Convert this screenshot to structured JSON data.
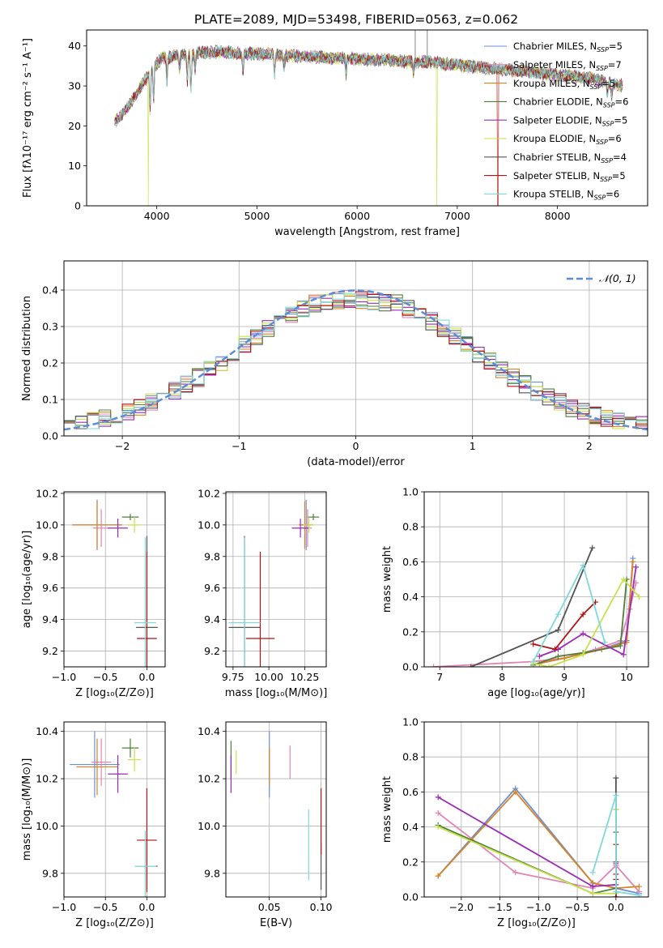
{
  "title": "PLATE=2089, MJD=53498, FIBERID=0563, z=0.062",
  "colors": {
    "Chabrier MILES": "#6b8fd6",
    "Salpeter MILES": "#e284b4",
    "Kroupa MILES": "#d98324",
    "Chabrier ELODIE": "#4f7f3a",
    "Salpeter ELODIE": "#9a2bb5",
    "Kroupa ELODIE": "#c6e24a",
    "Chabrier STELIB": "#545454",
    "Salpeter STELIB": "#b01414",
    "Kroupa STELIB": "#7fd8dc",
    "normal": "#5b8dd6",
    "grid": "#b0b0b0"
  },
  "models": [
    {
      "name": "Chabrier MILES",
      "label": "Chabrier MILES, N",
      "ssp": "=5"
    },
    {
      "name": "Salpeter MILES",
      "label": "Salpeter MILES, N",
      "ssp": "=7"
    },
    {
      "name": "Kroupa MILES",
      "label": "Kroupa MILES, N",
      "ssp": "=5"
    },
    {
      "name": "Chabrier ELODIE",
      "label": "Chabrier ELODIE, N",
      "ssp": "=6"
    },
    {
      "name": "Salpeter ELODIE",
      "label": "Salpeter ELODIE, N",
      "ssp": "=5"
    },
    {
      "name": "Kroupa ELODIE",
      "label": "Kroupa ELODIE, N",
      "ssp": "=6"
    },
    {
      "name": "Chabrier STELIB",
      "label": "Chabrier STELIB, N",
      "ssp": "=4"
    },
    {
      "name": "Salpeter STELIB",
      "label": "Salpeter STELIB, N",
      "ssp": "=5"
    },
    {
      "name": "Kroupa STELIB",
      "label": "Kroupa STELIB, N",
      "ssp": "=6"
    }
  ],
  "chart_data": [
    {
      "id": "spectrum",
      "type": "line",
      "xlabel": "wavelength [Angstrom, rest frame]",
      "ylabel": "Flux [fλ10⁻¹⁷ erg cm⁻² s⁻¹ A⁻¹]",
      "xlim": [
        3300,
        8900
      ],
      "ylim": [
        0,
        44
      ],
      "xticks": [
        4000,
        5000,
        6000,
        7000,
        8000
      ],
      "yticks": [
        0,
        10,
        20,
        30,
        40
      ],
      "grid": false,
      "legend": "top-right",
      "continuum": {
        "x": [
          3580,
          3650,
          3720,
          3800,
          3870,
          3950,
          4050,
          4200,
          4350,
          4500,
          4700,
          4900,
          5100,
          5300,
          5500,
          5700,
          5900,
          6100,
          6300,
          6500,
          6700,
          6900,
          7100,
          7300,
          7500,
          7700,
          7900,
          8100,
          8300,
          8500,
          8650
        ],
        "y": [
          21,
          23,
          25,
          28,
          31,
          34,
          37,
          37.5,
          38,
          38.5,
          38.5,
          38,
          38,
          37.5,
          37.5,
          37,
          37,
          36.5,
          36.5,
          36,
          36,
          35.5,
          35,
          34.5,
          34,
          33.5,
          33,
          32.5,
          32,
          31,
          30
        ]
      },
      "absorption_lines": [
        {
          "x": 3934,
          "depth": 9
        },
        {
          "x": 3969,
          "depth": 8
        },
        {
          "x": 4102,
          "depth": 6
        },
        {
          "x": 4227,
          "depth": 4
        },
        {
          "x": 4304,
          "depth": 7
        },
        {
          "x": 4341,
          "depth": 9
        },
        {
          "x": 4383,
          "depth": 4
        },
        {
          "x": 4861,
          "depth": 5
        },
        {
          "x": 5175,
          "depth": 5
        },
        {
          "x": 5270,
          "depth": 3
        },
        {
          "x": 5890,
          "depth": 4
        },
        {
          "x": 6563,
          "depth": 3
        },
        {
          "x": 8498,
          "depth": 3
        },
        {
          "x": 8542,
          "depth": 3
        },
        {
          "x": 8662,
          "depth": 3
        }
      ],
      "drops": [
        {
          "x": 3918,
          "y": 0,
          "series": "Kroupa ELODIE"
        },
        {
          "x": 6795,
          "y": 0,
          "series": "Kroupa ELODIE"
        },
        {
          "x": 7405,
          "y": 0,
          "series": "Salpeter STELIB"
        }
      ],
      "spikes": [
        {
          "x": 6580,
          "y": 44
        },
        {
          "x": 6700,
          "y": 44
        }
      ]
    },
    {
      "id": "residuals",
      "type": "histogram",
      "xlabel": "(data-model)/error",
      "ylabel": "Normed distribution",
      "xlim": [
        -2.5,
        2.5
      ],
      "ylim": [
        0,
        0.48
      ],
      "xticks": [
        -2,
        -1,
        0,
        1,
        2
      ],
      "yticks": [
        0.0,
        0.1,
        0.2,
        0.3,
        0.4
      ],
      "grid": true,
      "legend": "top-right",
      "normal_label": "𝒩(0, 1)",
      "bins_start": -2.5,
      "bin_width": 0.1
    },
    {
      "id": "age_vs_Z",
      "type": "errorbar",
      "xlabel": "Z [log₁₀(Z/Z⊙)]",
      "ylabel": "age  [log₁₀(age/yr)]",
      "xlim": [
        -1.0,
        0.22
      ],
      "ylim": [
        9.1,
        10.21
      ],
      "xticks": [
        -1.0,
        -0.5,
        0.0
      ],
      "yticks": [
        9.2,
        9.4,
        9.6,
        9.8,
        10.0,
        10.2
      ],
      "grid": true,
      "points": [
        {
          "series": "Chabrier MILES",
          "x": -0.6,
          "y": 10.0,
          "xerr": 0.3,
          "yerr": 0.16
        },
        {
          "series": "Salpeter MILES",
          "x": -0.55,
          "y": 9.98,
          "xerr": 0.1,
          "yerr": 0.12
        },
        {
          "series": "Kroupa MILES",
          "x": -0.6,
          "y": 10.0,
          "xerr": 0.3,
          "yerr": 0.15
        },
        {
          "series": "Chabrier ELODIE",
          "x": -0.2,
          "y": 10.05,
          "xerr": 0.1,
          "yerr": 0.02
        },
        {
          "series": "Salpeter ELODIE",
          "x": -0.35,
          "y": 9.98,
          "xerr": 0.12,
          "yerr": 0.06
        },
        {
          "series": "Kroupa ELODIE",
          "x": -0.15,
          "y": 10.0,
          "xerr": 0.08,
          "yerr": 0.05
        },
        {
          "series": "Chabrier STELIB",
          "x": 0.0,
          "y": 9.35,
          "xerr": 0.13,
          "yerr": 0.58
        },
        {
          "series": "Salpeter STELIB",
          "x": 0.0,
          "y": 9.28,
          "xerr": 0.12,
          "yerr": 0.55
        },
        {
          "series": "Kroupa STELIB",
          "x": -0.02,
          "y": 9.38,
          "xerr": 0.13,
          "yerr": 0.54
        }
      ]
    },
    {
      "id": "age_vs_mass",
      "type": "errorbar",
      "xlabel": "mass [log₁₀(M/M⊙)]",
      "ylabel": "",
      "xlim": [
        9.7,
        10.4
      ],
      "ylim": [
        9.1,
        10.21
      ],
      "xticks": [
        9.75,
        10.0,
        10.25
      ],
      "yticks": [
        9.2,
        9.4,
        9.6,
        9.8,
        10.0,
        10.2
      ],
      "grid": true,
      "points": [
        {
          "series": "Chabrier MILES",
          "x": 10.26,
          "y": 10.0,
          "xerr": 0.05,
          "yerr": 0.16
        },
        {
          "series": "Salpeter MILES",
          "x": 10.27,
          "y": 9.98,
          "xerr": 0.03,
          "yerr": 0.12
        },
        {
          "series": "Kroupa MILES",
          "x": 10.25,
          "y": 10.0,
          "xerr": 0.04,
          "yerr": 0.15
        },
        {
          "series": "Chabrier ELODIE",
          "x": 10.31,
          "y": 10.05,
          "xerr": 0.04,
          "yerr": 0.02
        },
        {
          "series": "Salpeter ELODIE",
          "x": 10.22,
          "y": 9.98,
          "xerr": 0.06,
          "yerr": 0.06
        },
        {
          "series": "Kroupa ELODIE",
          "x": 10.28,
          "y": 10.0,
          "xerr": 0.04,
          "yerr": 0.05
        },
        {
          "series": "Chabrier STELIB",
          "x": 9.83,
          "y": 9.35,
          "xerr": 0.11,
          "yerr": 0.58
        },
        {
          "series": "Salpeter STELIB",
          "x": 9.94,
          "y": 9.28,
          "xerr": 0.1,
          "yerr": 0.55
        },
        {
          "series": "Kroupa STELIB",
          "x": 9.83,
          "y": 9.38,
          "xerr": 0.11,
          "yerr": 0.54
        }
      ]
    },
    {
      "id": "weight_vs_age",
      "type": "line",
      "xlabel": "age  [log₁₀(age/yr)]",
      "ylabel": "mass weight",
      "xlim": [
        6.75,
        10.35
      ],
      "ylim": [
        0.0,
        1.0
      ],
      "xticks": [
        7,
        8,
        9,
        10
      ],
      "yticks": [
        0.0,
        0.2,
        0.4,
        0.6,
        0.8,
        1.0
      ],
      "grid": true,
      "series": [
        {
          "name": "Chabrier MILES",
          "x": [
            8.6,
            9.0,
            9.6,
            10.0,
            10.1
          ],
          "y": [
            0.02,
            0.05,
            0.1,
            0.15,
            0.62
          ]
        },
        {
          "name": "Salpeter MILES",
          "x": [
            6.9,
            8.5,
            9.0,
            9.5,
            9.9,
            10.05,
            10.15
          ],
          "y": [
            0.0,
            0.03,
            0.05,
            0.1,
            0.15,
            0.33,
            0.48
          ]
        },
        {
          "name": "Kroupa MILES",
          "x": [
            8.6,
            9.0,
            9.6,
            10.0,
            10.1
          ],
          "y": [
            0.02,
            0.05,
            0.1,
            0.14,
            0.6
          ]
        },
        {
          "name": "Chabrier ELODIE",
          "x": [
            8.5,
            8.9,
            9.3,
            9.9,
            10.0
          ],
          "y": [
            0.01,
            0.06,
            0.08,
            0.12,
            0.5
          ]
        },
        {
          "name": "Salpeter ELODIE",
          "x": [
            8.6,
            8.9,
            9.3,
            9.95,
            10.15
          ],
          "y": [
            0.06,
            0.1,
            0.19,
            0.07,
            0.57
          ]
        },
        {
          "name": "Kroupa ELODIE",
          "x": [
            8.5,
            8.75,
            9.3,
            9.95,
            10.2
          ],
          "y": [
            0.02,
            0.0,
            0.07,
            0.5,
            0.4
          ]
        },
        {
          "name": "Chabrier STELIB",
          "x": [
            7.5,
            8.9,
            9.45
          ],
          "y": [
            0.0,
            0.21,
            0.68
          ]
        },
        {
          "name": "Salpeter STELIB",
          "x": [
            8.5,
            8.85,
            9.3,
            9.5
          ],
          "y": [
            0.13,
            0.1,
            0.3,
            0.37
          ]
        },
        {
          "name": "Kroupa STELIB",
          "x": [
            8.5,
            8.9,
            9.3,
            9.65
          ],
          "y": [
            0.03,
            0.3,
            0.58,
            0.14
          ]
        }
      ]
    },
    {
      "id": "mass_vs_Z",
      "type": "errorbar",
      "xlabel": "Z [log₁₀(Z/Z⊙)]",
      "ylabel": "mass [log₁₀(M/M⊙)]",
      "xlim": [
        -1.0,
        0.22
      ],
      "ylim": [
        9.7,
        10.44
      ],
      "xticks": [
        -1.0,
        -0.5,
        0.0
      ],
      "yticks": [
        9.8,
        10.0,
        10.2,
        10.4
      ],
      "grid": true,
      "points": [
        {
          "series": "Chabrier MILES",
          "x": -0.63,
          "y": 10.26,
          "xerr": 0.3,
          "yerr": 0.14
        },
        {
          "series": "Salpeter MILES",
          "x": -0.55,
          "y": 10.27,
          "xerr": 0.12,
          "yerr": 0.1
        },
        {
          "series": "Kroupa MILES",
          "x": -0.6,
          "y": 10.25,
          "xerr": 0.25,
          "yerr": 0.12
        },
        {
          "series": "Chabrier ELODIE",
          "x": -0.2,
          "y": 10.33,
          "xerr": 0.1,
          "yerr": 0.04
        },
        {
          "series": "Salpeter ELODIE",
          "x": -0.35,
          "y": 10.22,
          "xerr": 0.12,
          "yerr": 0.08
        },
        {
          "series": "Kroupa ELODIE",
          "x": -0.15,
          "y": 10.28,
          "xerr": 0.08,
          "yerr": 0.05
        },
        {
          "series": "Chabrier STELIB",
          "x": 0.0,
          "y": 9.83,
          "xerr": 0.13,
          "yerr": 0.1
        },
        {
          "series": "Salpeter STELIB",
          "x": 0.0,
          "y": 9.94,
          "xerr": 0.12,
          "yerr": 0.22
        },
        {
          "series": "Kroupa STELIB",
          "x": -0.02,
          "y": 9.83,
          "xerr": 0.13,
          "yerr": 0.15
        }
      ]
    },
    {
      "id": "mass_vs_ebv",
      "type": "errorbar",
      "xlabel": "E(B-V)",
      "ylabel": "",
      "xlim": [
        0.008,
        0.105
      ],
      "ylim": [
        9.7,
        10.44
      ],
      "xticks": [
        0.05,
        0.1
      ],
      "yticks": [
        9.8,
        10.0,
        10.2,
        10.4
      ],
      "grid": true,
      "points": [
        {
          "series": "Chabrier MILES",
          "x": 0.05,
          "y": 10.26,
          "xerr": 0.0,
          "yerr": 0.14
        },
        {
          "series": "Salpeter MILES",
          "x": 0.07,
          "y": 10.27,
          "xerr": 0.0,
          "yerr": 0.07
        },
        {
          "series": "Kroupa MILES",
          "x": 0.05,
          "y": 10.25,
          "xerr": 0.0,
          "yerr": 0.08
        },
        {
          "series": "Chabrier ELODIE",
          "x": 0.013,
          "y": 10.28,
          "xerr": 0.0,
          "yerr": 0.08
        },
        {
          "series": "Salpeter ELODIE",
          "x": 0.013,
          "y": 10.22,
          "xerr": 0.0,
          "yerr": 0.08
        },
        {
          "series": "Kroupa ELODIE",
          "x": 0.018,
          "y": 10.27,
          "xerr": 0.0,
          "yerr": 0.05
        },
        {
          "series": "Chabrier STELIB",
          "x": 0.1,
          "y": 9.83,
          "xerr": 0.0,
          "yerr": 0.1
        },
        {
          "series": "Salpeter STELIB",
          "x": 0.1,
          "y": 10.02,
          "xerr": 0.0,
          "yerr": 0.14
        },
        {
          "series": "Kroupa STELIB",
          "x": 0.088,
          "y": 9.92,
          "xerr": 0.0,
          "yerr": 0.15
        }
      ]
    },
    {
      "id": "weight_vs_Z",
      "type": "line",
      "xlabel": "Z [log₁₀(Z/Z⊙)]",
      "ylabel": "mass weight",
      "xlim": [
        -2.48,
        0.42
      ],
      "ylim": [
        0.0,
        1.0
      ],
      "xticks": [
        -2.0,
        -1.5,
        -1.0,
        -0.5,
        0.0
      ],
      "yticks": [
        0.0,
        0.2,
        0.4,
        0.6,
        0.8,
        1.0
      ],
      "grid": true,
      "series": [
        {
          "name": "Chabrier MILES",
          "x": [
            -2.3,
            -1.3,
            -0.3,
            0.0,
            0.3
          ],
          "y": [
            0.12,
            0.62,
            0.08,
            0.05,
            0.02
          ]
        },
        {
          "name": "Salpeter MILES",
          "x": [
            -2.3,
            -1.3,
            -0.3,
            0.0,
            0.3
          ],
          "y": [
            0.48,
            0.14,
            0.05,
            0.18,
            0.03
          ]
        },
        {
          "name": "Kroupa MILES",
          "x": [
            -2.3,
            -1.3,
            -0.3,
            0.0,
            0.3
          ],
          "y": [
            0.12,
            0.6,
            0.08,
            0.05,
            0.06
          ]
        },
        {
          "name": "Chabrier ELODIE",
          "x": [
            -2.3,
            -0.3,
            0.0,
            0.0
          ],
          "y": [
            0.41,
            0.02,
            0.05,
            0.5
          ]
        },
        {
          "name": "Salpeter ELODIE",
          "x": [
            -2.3,
            -0.3,
            0.0,
            0.0
          ],
          "y": [
            0.57,
            0.06,
            0.07,
            0.19
          ]
        },
        {
          "name": "Kroupa ELODIE",
          "x": [
            -2.3,
            -0.3,
            0.0,
            0.0
          ],
          "y": [
            0.4,
            0.02,
            0.02,
            0.5
          ]
        },
        {
          "name": "Chabrier STELIB",
          "x": [
            0.0,
            0.0,
            0.0,
            0.0
          ],
          "y": [
            0.68,
            0.37,
            0.2,
            0.0
          ]
        },
        {
          "name": "Salpeter STELIB",
          "x": [
            0.0,
            0.0,
            0.0,
            0.0
          ],
          "y": [
            0.3,
            0.13,
            0.1,
            0.0
          ]
        },
        {
          "name": "Kroupa STELIB",
          "x": [
            -0.3,
            0.0,
            0.0,
            0.3
          ],
          "y": [
            0.14,
            0.58,
            0.03,
            0.01
          ]
        }
      ]
    }
  ]
}
